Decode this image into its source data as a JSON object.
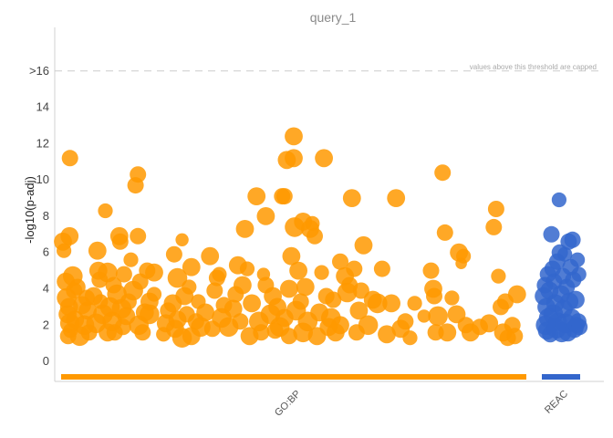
{
  "chart_data": {
    "type": "scatter",
    "title": "query_1",
    "xlabel": "",
    "ylabel": "-log10(p-adj)",
    "ylim": [
      -1,
      18
    ],
    "y_ticks": [
      {
        "value": 0,
        "label": "0"
      },
      {
        "value": 2,
        "label": "2"
      },
      {
        "value": 4,
        "label": "4"
      },
      {
        "value": 6,
        "label": "6"
      },
      {
        "value": 8,
        "label": "8"
      },
      {
        "value": 10,
        "label": "10"
      },
      {
        "value": 12,
        "label": "12"
      },
      {
        "value": 14,
        "label": "14"
      },
      {
        "value": 16,
        "label": ">16"
      }
    ],
    "cap_threshold": 16,
    "cap_note": "values above this threshold are capped",
    "categories": [
      {
        "name": "GO:BP",
        "color": "#ff9900",
        "x_range": [
          0,
          1
        ]
      },
      {
        "name": "REAC",
        "color": "#3366cc",
        "x_range": [
          0,
          1
        ]
      }
    ],
    "series": [
      {
        "name": "GO:BP",
        "color": "#ff9900",
        "points": [
          [
            0.004,
            6.6,
            11
          ],
          [
            0.006,
            6.1,
            9
          ],
          [
            0.01,
            4.4,
            11
          ],
          [
            0.012,
            3.5,
            12
          ],
          [
            0.014,
            2.6,
            11
          ],
          [
            0.015,
            1.4,
            10
          ],
          [
            0.017,
            3.0,
            11
          ],
          [
            0.018,
            6.9,
            11
          ],
          [
            0.019,
            2.1,
            12
          ],
          [
            0.02,
            1.7,
            9
          ],
          [
            0.019,
            11.2,
            10
          ],
          [
            0.025,
            4.7,
            12
          ],
          [
            0.028,
            3.9,
            10
          ],
          [
            0.03,
            2.3,
            11
          ],
          [
            0.035,
            4.1,
            10
          ],
          [
            0.04,
            1.4,
            12
          ],
          [
            0.045,
            3.1,
            11
          ],
          [
            0.05,
            2.0,
            12
          ],
          [
            0.055,
            3.5,
            10
          ],
          [
            0.057,
            2.8,
            11
          ],
          [
            0.06,
            1.6,
            10
          ],
          [
            0.07,
            3.6,
            11
          ],
          [
            0.075,
            2.1,
            12
          ],
          [
            0.078,
            6.1,
            11
          ],
          [
            0.08,
            5.0,
            11
          ],
          [
            0.083,
            4.5,
            10
          ],
          [
            0.085,
            3.3,
            9
          ],
          [
            0.09,
            2.6,
            12
          ],
          [
            0.095,
            8.3,
            9
          ],
          [
            0.1,
            4.9,
            12
          ],
          [
            0.1,
            1.6,
            11
          ],
          [
            0.105,
            3.0,
            12
          ],
          [
            0.11,
            2.2,
            12
          ],
          [
            0.113,
            4.2,
            10
          ],
          [
            0.115,
            1.6,
            10
          ],
          [
            0.12,
            3.7,
            12
          ],
          [
            0.125,
            6.9,
            11
          ],
          [
            0.127,
            6.6,
            10
          ],
          [
            0.13,
            2.9,
            12
          ],
          [
            0.133,
            1.9,
            10
          ],
          [
            0.135,
            4.8,
            10
          ],
          [
            0.14,
            2.5,
            11
          ],
          [
            0.145,
            3.3,
            10
          ],
          [
            0.15,
            5.6,
            9
          ],
          [
            0.155,
            3.9,
            12
          ],
          [
            0.16,
            9.7,
            10
          ],
          [
            0.165,
            10.3,
            10
          ],
          [
            0.165,
            6.9,
            10
          ],
          [
            0.167,
            2.0,
            12
          ],
          [
            0.17,
            4.4,
            10
          ],
          [
            0.175,
            1.6,
            10
          ],
          [
            0.18,
            2.7,
            11
          ],
          [
            0.185,
            5.0,
            10
          ],
          [
            0.19,
            3.3,
            11
          ],
          [
            0.19,
            2.6,
            12
          ],
          [
            0.2,
            3.7,
            9
          ],
          [
            0.2,
            4.9,
            11
          ],
          [
            0.22,
            1.5,
            9
          ],
          [
            0.225,
            2.1,
            11
          ],
          [
            0.23,
            2.8,
            10
          ],
          [
            0.24,
            3.2,
            11
          ],
          [
            0.243,
            5.9,
            10
          ],
          [
            0.245,
            1.8,
            11
          ],
          [
            0.25,
            4.6,
            12
          ],
          [
            0.25,
            2.3,
            11
          ],
          [
            0.26,
            6.7,
            8
          ],
          [
            0.26,
            1.3,
            12
          ],
          [
            0.265,
            3.6,
            11
          ],
          [
            0.27,
            2.6,
            10
          ],
          [
            0.275,
            4.1,
            9
          ],
          [
            0.28,
            5.2,
            11
          ],
          [
            0.28,
            1.4,
            11
          ],
          [
            0.29,
            2.2,
            10
          ],
          [
            0.295,
            3.3,
            9
          ],
          [
            0.3,
            1.9,
            12
          ],
          [
            0.31,
            2.7,
            11
          ],
          [
            0.32,
            5.8,
            11
          ],
          [
            0.325,
            1.8,
            10
          ],
          [
            0.33,
            3.9,
            10
          ],
          [
            0.335,
            4.6,
            10
          ],
          [
            0.34,
            4.8,
            9
          ],
          [
            0.345,
            2.4,
            12
          ],
          [
            0.35,
            3.1,
            10
          ],
          [
            0.36,
            1.9,
            12
          ],
          [
            0.37,
            2.9,
            11
          ],
          [
            0.375,
            3.7,
            10
          ],
          [
            0.38,
            5.3,
            11
          ],
          [
            0.385,
            2.2,
            10
          ],
          [
            0.39,
            4.2,
            11
          ],
          [
            0.395,
            7.3,
            11
          ],
          [
            0.4,
            5.1,
            9
          ],
          [
            0.405,
            1.4,
            11
          ],
          [
            0.41,
            3.2,
            11
          ],
          [
            0.42,
            9.1,
            11
          ],
          [
            0.425,
            2.2,
            12
          ],
          [
            0.43,
            1.6,
            10
          ],
          [
            0.435,
            4.8,
            8
          ],
          [
            0.44,
            4.2,
            10
          ],
          [
            0.44,
            8.0,
            11
          ],
          [
            0.45,
            2.6,
            12
          ],
          [
            0.455,
            3.6,
            11
          ],
          [
            0.46,
            1.7,
            10
          ],
          [
            0.465,
            3.0,
            11
          ],
          [
            0.47,
            1.9,
            12
          ],
          [
            0.475,
            9.1,
            10
          ],
          [
            0.48,
            9.1,
            10
          ],
          [
            0.48,
            2.4,
            11
          ],
          [
            0.485,
            11.1,
            11
          ],
          [
            0.49,
            4.0,
            11
          ],
          [
            0.49,
            1.4,
            10
          ],
          [
            0.495,
            5.8,
            11
          ],
          [
            0.5,
            12.4,
            11
          ],
          [
            0.5,
            11.2,
            11
          ],
          [
            0.502,
            7.4,
            12
          ],
          [
            0.505,
            2.8,
            12
          ],
          [
            0.51,
            5.0,
            11
          ],
          [
            0.515,
            3.3,
            10
          ],
          [
            0.52,
            7.7,
            11
          ],
          [
            0.52,
            1.6,
            12
          ],
          [
            0.525,
            4.1,
            11
          ],
          [
            0.53,
            2.2,
            12
          ],
          [
            0.535,
            7.3,
            11
          ],
          [
            0.54,
            7.6,
            9
          ],
          [
            0.545,
            6.9,
            10
          ],
          [
            0.55,
            1.4,
            11
          ],
          [
            0.555,
            2.7,
            11
          ],
          [
            0.56,
            4.9,
            9
          ],
          [
            0.565,
            11.2,
            11
          ],
          [
            0.57,
            3.6,
            10
          ],
          [
            0.575,
            1.9,
            11
          ],
          [
            0.58,
            2.4,
            12
          ],
          [
            0.585,
            3.4,
            10
          ],
          [
            0.59,
            1.6,
            11
          ],
          [
            0.6,
            5.5,
            10
          ],
          [
            0.6,
            2.0,
            11
          ],
          [
            0.61,
            4.7,
            11
          ],
          [
            0.615,
            3.8,
            12
          ],
          [
            0.62,
            4.2,
            10
          ],
          [
            0.625,
            9.0,
            11
          ],
          [
            0.63,
            5.1,
            10
          ],
          [
            0.635,
            1.6,
            10
          ],
          [
            0.64,
            2.8,
            11
          ],
          [
            0.645,
            3.9,
            10
          ],
          [
            0.65,
            6.4,
            11
          ],
          [
            0.66,
            2.0,
            12
          ],
          [
            0.67,
            3.4,
            11
          ],
          [
            0.68,
            3.2,
            12
          ],
          [
            0.69,
            5.1,
            10
          ],
          [
            0.7,
            1.5,
            11
          ],
          [
            0.71,
            3.2,
            11
          ],
          [
            0.72,
            9.0,
            11
          ],
          [
            0.73,
            1.8,
            11
          ],
          [
            0.74,
            2.2,
            10
          ],
          [
            0.75,
            1.3,
            9
          ],
          [
            0.76,
            3.2,
            9
          ],
          [
            0.78,
            2.5,
            8
          ],
          [
            0.795,
            5.0,
            10
          ],
          [
            0.8,
            4.0,
            11
          ],
          [
            0.802,
            3.6,
            10
          ],
          [
            0.805,
            1.6,
            10
          ],
          [
            0.81,
            2.5,
            12
          ],
          [
            0.82,
            10.4,
            10
          ],
          [
            0.825,
            7.1,
            10
          ],
          [
            0.83,
            1.6,
            11
          ],
          [
            0.84,
            3.5,
            9
          ],
          [
            0.85,
            2.6,
            11
          ],
          [
            0.855,
            6.0,
            11
          ],
          [
            0.86,
            5.4,
            7
          ],
          [
            0.865,
            5.8,
            9
          ],
          [
            0.87,
            2.0,
            10
          ],
          [
            0.88,
            1.6,
            11
          ],
          [
            0.9,
            1.9,
            10
          ],
          [
            0.92,
            2.1,
            11
          ],
          [
            0.93,
            7.4,
            10
          ],
          [
            0.935,
            8.4,
            10
          ],
          [
            0.94,
            4.7,
            9
          ],
          [
            0.945,
            3.0,
            10
          ],
          [
            0.95,
            1.6,
            11
          ],
          [
            0.955,
            3.3,
            10
          ],
          [
            0.96,
            1.3,
            10
          ],
          [
            0.97,
            2.0,
            10
          ],
          [
            0.975,
            1.4,
            10
          ],
          [
            0.98,
            3.7,
            11
          ]
        ]
      },
      {
        "name": "REAC",
        "color": "#3366cc",
        "points": [
          [
            0.05,
            3.6,
            11
          ],
          [
            0.08,
            4.2,
            10
          ],
          [
            0.1,
            2.0,
            12
          ],
          [
            0.12,
            3.0,
            11
          ],
          [
            0.13,
            1.7,
            11
          ],
          [
            0.16,
            4.8,
            10
          ],
          [
            0.18,
            2.4,
            12
          ],
          [
            0.2,
            3.9,
            11
          ],
          [
            0.22,
            1.5,
            10
          ],
          [
            0.25,
            7.0,
            10
          ],
          [
            0.28,
            5.1,
            10
          ],
          [
            0.3,
            2.6,
            12
          ],
          [
            0.32,
            4.4,
            10
          ],
          [
            0.35,
            3.2,
            11
          ],
          [
            0.38,
            1.8,
            12
          ],
          [
            0.4,
            5.5,
            10
          ],
          [
            0.42,
            2.2,
            11
          ],
          [
            0.45,
            8.9,
            9
          ],
          [
            0.47,
            6.0,
            10
          ],
          [
            0.5,
            3.7,
            11
          ],
          [
            0.52,
            1.6,
            12
          ],
          [
            0.55,
            4.7,
            10
          ],
          [
            0.57,
            2.9,
            11
          ],
          [
            0.6,
            5.9,
            9
          ],
          [
            0.62,
            2.1,
            12
          ],
          [
            0.65,
            4.1,
            10
          ],
          [
            0.68,
            1.6,
            11
          ],
          [
            0.7,
            6.6,
            10
          ],
          [
            0.72,
            3.3,
            11
          ],
          [
            0.75,
            5.2,
            10
          ],
          [
            0.78,
            2.4,
            11
          ],
          [
            0.8,
            6.7,
            10
          ],
          [
            0.82,
            4.5,
            10
          ],
          [
            0.85,
            1.8,
            11
          ],
          [
            0.88,
            3.4,
            11
          ],
          [
            0.9,
            2.0,
            10
          ],
          [
            0.93,
            5.6,
            9
          ],
          [
            0.95,
            2.2,
            10
          ],
          [
            0.97,
            4.8,
            9
          ],
          [
            0.98,
            1.9,
            10
          ]
        ]
      }
    ],
    "legend": "none",
    "grid": false
  }
}
